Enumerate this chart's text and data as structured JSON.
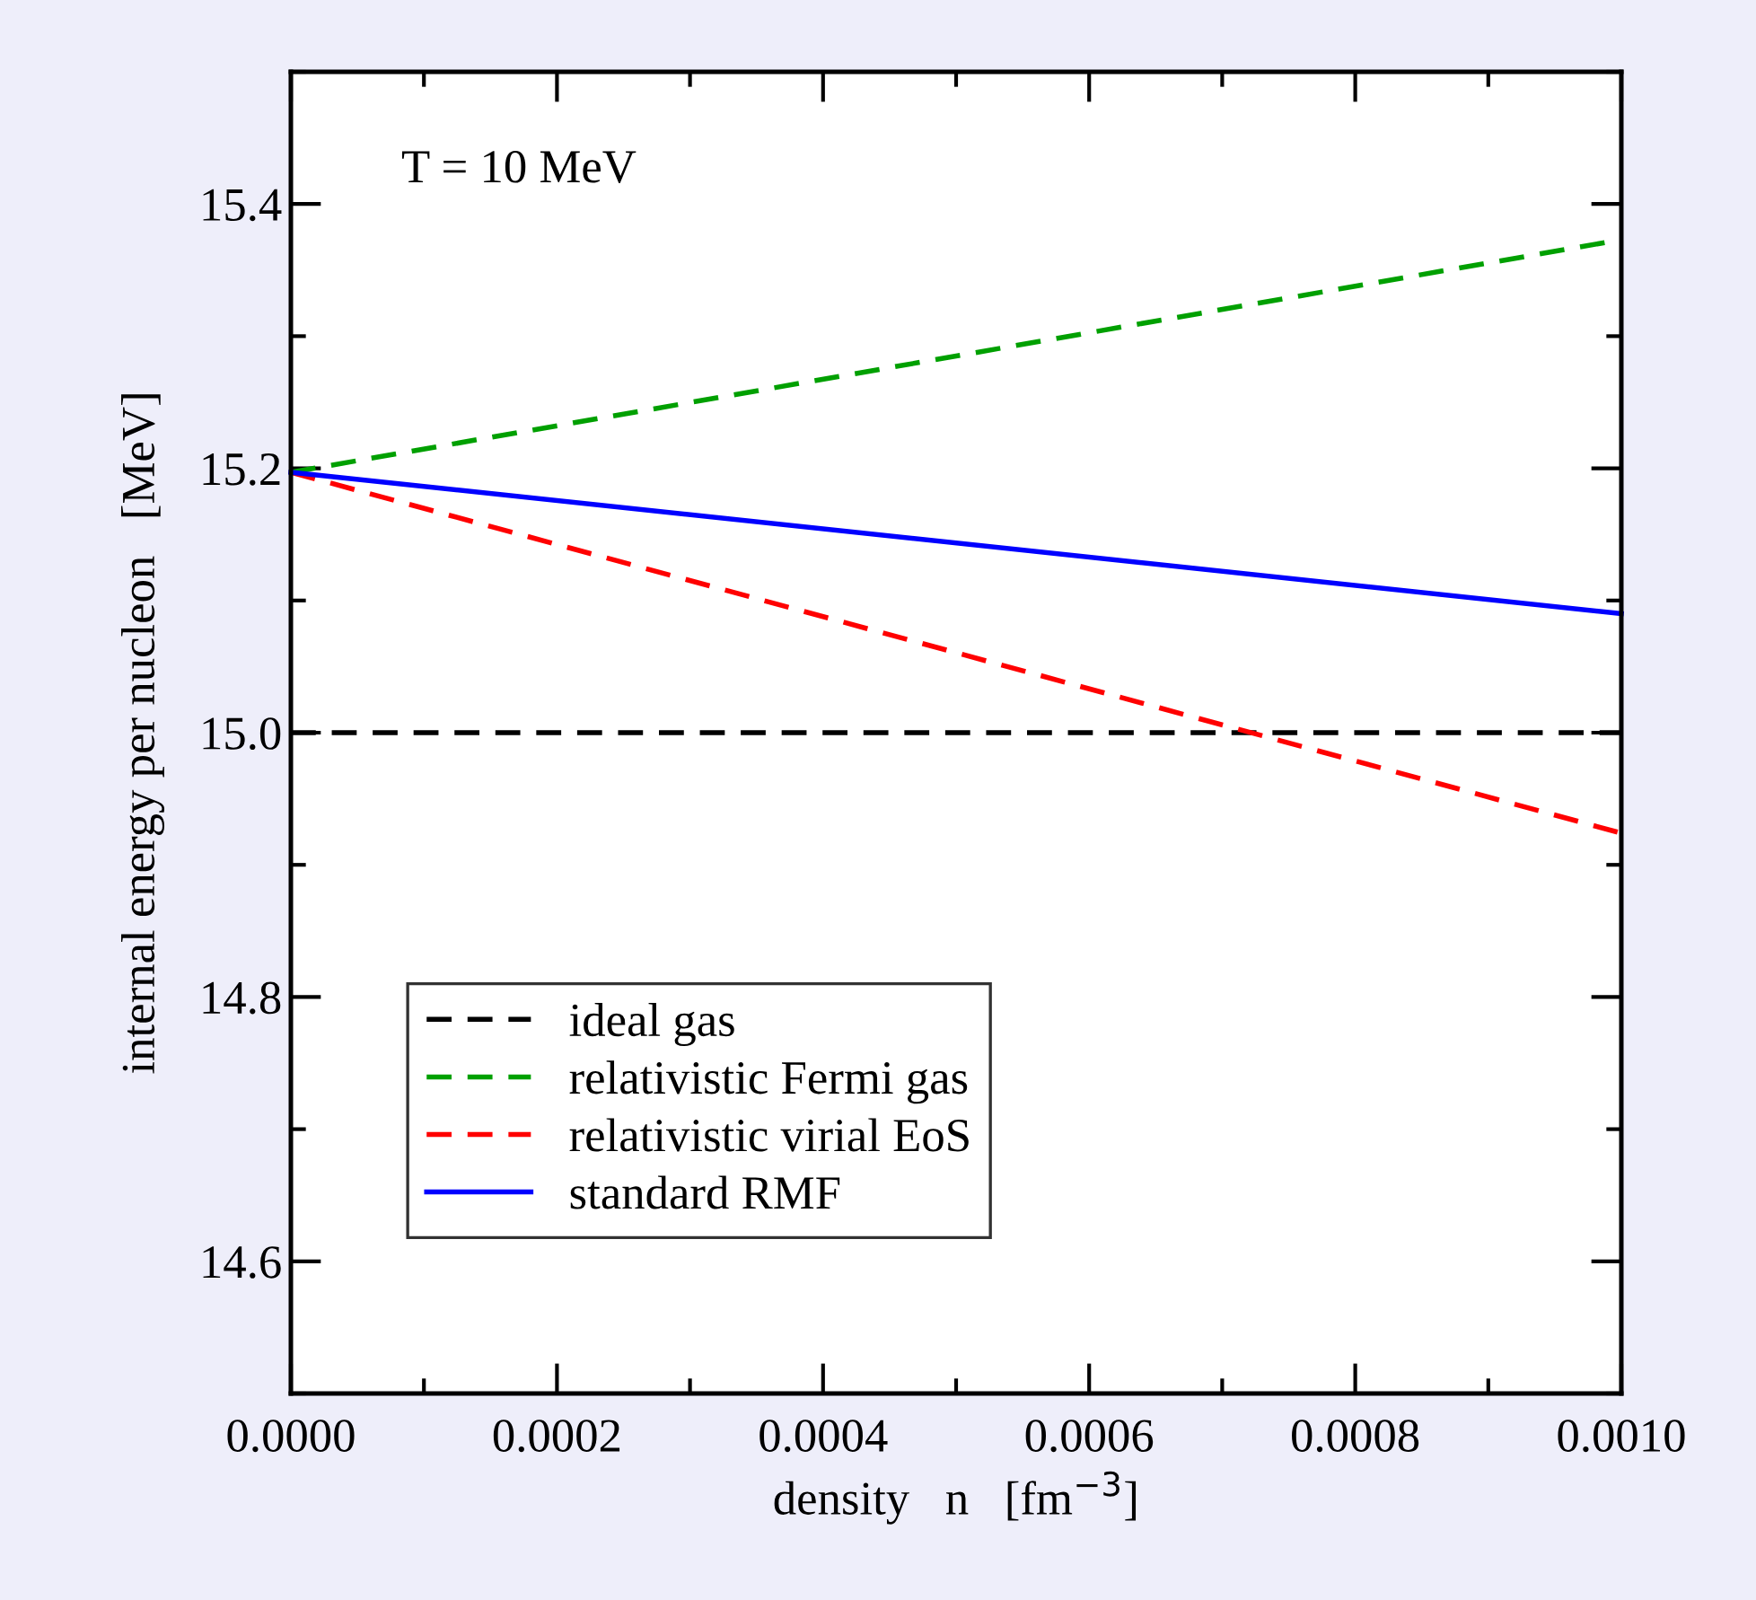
{
  "chart_data": {
    "type": "line",
    "xlabel": "density   n   [fm$^{−3}$]",
    "ylabel": "internal energy per nucleon   [MeV]",
    "annotations": [
      "T = 10 MeV"
    ],
    "x": [
      0,
      0.001
    ],
    "series": [
      {
        "name": "ideal gas",
        "color": "#000000",
        "line_style": "dashed",
        "values": [
          15.0,
          15.0
        ]
      },
      {
        "name": "relativistic Fermi gas",
        "color": "#00a000",
        "line_style": "dashed",
        "values": [
          15.197,
          15.373
        ]
      },
      {
        "name": "relativistic virial EoS",
        "color": "#ff0000",
        "line_style": "dashed",
        "values": [
          15.197,
          14.924
        ]
      },
      {
        "name": "standard RMF",
        "color": "#0000ff",
        "line_style": "solid",
        "values": [
          15.197,
          15.09
        ]
      }
    ],
    "xlim": [
      0,
      0.001
    ],
    "ylim": [
      14.5,
      15.5
    ],
    "xticks": [
      {
        "value": 0,
        "label": "0.0000"
      },
      {
        "value": 0.0001,
        "label": null
      },
      {
        "value": 0.0002,
        "label": "0.0002"
      },
      {
        "value": 0.0003,
        "label": null
      },
      {
        "value": 0.0004,
        "label": "0.0004"
      },
      {
        "value": 0.0005,
        "label": null
      },
      {
        "value": 0.0006,
        "label": "0.0006"
      },
      {
        "value": 0.0007,
        "label": null
      },
      {
        "value": 0.0008,
        "label": "0.0008"
      },
      {
        "value": 0.0009,
        "label": null
      },
      {
        "value": 0.001,
        "label": "0.0010"
      }
    ],
    "yticks": [
      {
        "value": 14.5,
        "label": null
      },
      14.6,
      {
        "value": 14.7,
        "label": null
      },
      14.8,
      {
        "value": 14.9,
        "label": null
      },
      {
        "value": 15.0,
        "label": "15.0"
      },
      {
        "value": 15.1,
        "label": null
      },
      15.2,
      {
        "value": 15.3,
        "label": null
      },
      15.4,
      {
        "value": 15.5,
        "label": null
      }
    ],
    "grid": false,
    "legend": "bottom left",
    "marker": "none"
  }
}
